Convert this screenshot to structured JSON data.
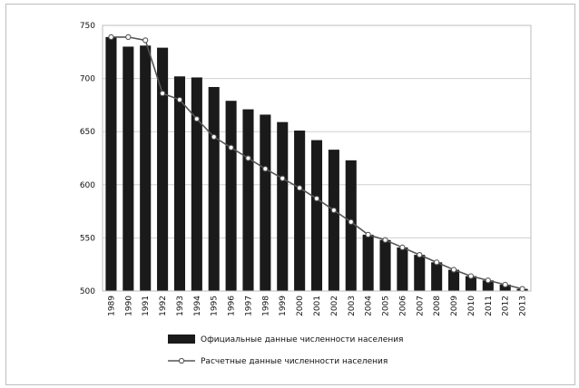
{
  "chart_data": {
    "type": "bar",
    "categories": [
      "1989",
      "1990",
      "1991",
      "1992",
      "1993",
      "1994",
      "1995",
      "1996",
      "1997",
      "1998",
      "1999",
      "2000",
      "2001",
      "2002",
      "2003",
      "2004",
      "2005",
      "2006",
      "2007",
      "2008",
      "2009",
      "2010",
      "2011",
      "2012",
      "2013"
    ],
    "series": [
      {
        "name": "Официальные данные численности населения",
        "type": "bar",
        "values": [
          739,
          730,
          731,
          729,
          702,
          701,
          692,
          679,
          671,
          666,
          659,
          651,
          642,
          633,
          623,
          null,
          null,
          null,
          null,
          null,
          null,
          null,
          null,
          null,
          null
        ]
      },
      {
        "name": "Расчетные данные численности населения",
        "type": "line",
        "values": [
          739,
          739,
          736,
          686,
          680,
          662,
          645,
          635,
          625,
          615,
          606,
          597,
          587,
          576,
          565,
          553,
          548,
          541,
          534,
          527,
          520,
          514,
          510,
          506,
          502
        ]
      }
    ],
    "bar_extension_values": [
      null,
      null,
      null,
      null,
      null,
      null,
      null,
      null,
      null,
      null,
      null,
      null,
      null,
      null,
      null,
      553,
      548,
      541,
      534,
      527,
      520,
      514,
      510,
      506,
      502
    ],
    "y_ticks": [
      500,
      550,
      600,
      650,
      700,
      750
    ],
    "ylim": [
      500,
      750
    ],
    "grid": true,
    "legend_position": "bottom",
    "colors": {
      "bar": "#1a1a1a",
      "line": "#555555",
      "marker_fill": "#ffffff",
      "grid": "#d0d0d0"
    }
  }
}
